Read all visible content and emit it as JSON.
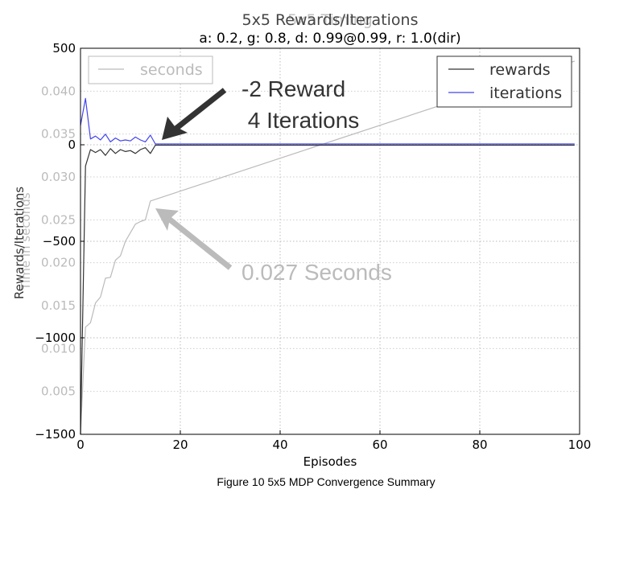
{
  "chart_data": {
    "type": "line",
    "title": "5x5 Rewards/Iterations",
    "title_secondary": "5x5 Timing",
    "subtitle": "a: 0.2, g: 0.8, d: 0.99@0.99, r: 1.0(dir)",
    "xlabel": "Episodes",
    "ylabel": "Rewards/Iterations",
    "ylabel_secondary": "Time in seconds",
    "xlim": [
      0,
      100
    ],
    "ylim": [
      -1500,
      500
    ],
    "ylim_secondary": [
      0.0,
      0.045
    ],
    "xticks": [
      "0",
      "20",
      "40",
      "60",
      "80",
      "100"
    ],
    "yticks": [
      "500",
      "0",
      "−500",
      "−1000",
      "−1500"
    ],
    "yticks_secondary": [
      "0.040",
      "0.035",
      "0.030",
      "0.025",
      "0.020",
      "0.015",
      "0.010",
      "0.005"
    ],
    "grid": true,
    "legend": {
      "placement": "top-right",
      "entries": [
        "rewards",
        "iterations"
      ]
    },
    "legend_secondary": {
      "placement": "top-left",
      "entries": [
        "seconds"
      ]
    },
    "colors": {
      "rewards": "#333333",
      "iterations": "#4444ee",
      "seconds": "#bbbbbb"
    },
    "series": [
      {
        "name": "rewards",
        "axis": "primary",
        "x": [
          0,
          1,
          2,
          3,
          4,
          5,
          6,
          7,
          8,
          9,
          10,
          11,
          12,
          13,
          14,
          15,
          20,
          40,
          60,
          80,
          99
        ],
        "y": [
          -1500,
          -110,
          -25,
          -40,
          -25,
          -55,
          -20,
          -45,
          -25,
          -35,
          -30,
          -45,
          -25,
          -15,
          -45,
          -2,
          -2,
          -2,
          -2,
          -2,
          -2
        ]
      },
      {
        "name": "iterations",
        "axis": "primary",
        "x": [
          0,
          1,
          2,
          3,
          4,
          5,
          6,
          7,
          8,
          9,
          10,
          11,
          12,
          13,
          14,
          15,
          20,
          40,
          60,
          80,
          99
        ],
        "y": [
          100,
          240,
          30,
          45,
          25,
          55,
          15,
          35,
          20,
          25,
          20,
          40,
          25,
          15,
          50,
          4,
          4,
          4,
          4,
          4,
          4
        ]
      },
      {
        "name": "seconds",
        "axis": "secondary",
        "x": [
          0,
          1,
          2,
          3,
          4,
          5,
          6,
          7,
          8,
          9,
          10,
          11,
          12,
          13,
          14,
          99
        ],
        "y": [
          0.0,
          0.0125,
          0.013,
          0.0153,
          0.016,
          0.0182,
          0.0183,
          0.0203,
          0.0208,
          0.0225,
          0.0235,
          0.0245,
          0.0248,
          0.025,
          0.0272,
          0.0435
        ]
      }
    ],
    "annotations": [
      {
        "text_lines": [
          "-2 Reward",
          " 4 Iterations"
        ],
        "color": "#333333",
        "points_to": {
          "x": 16,
          "y": 4,
          "axis": "primary"
        }
      },
      {
        "text_lines": [
          "0.027 Seconds"
        ],
        "color": "#bbbbbb",
        "points_to": {
          "x": 15,
          "y": 0.0265,
          "axis": "secondary"
        }
      }
    ]
  },
  "caption": "Figure 10 5x5 MDP Convergence Summary"
}
